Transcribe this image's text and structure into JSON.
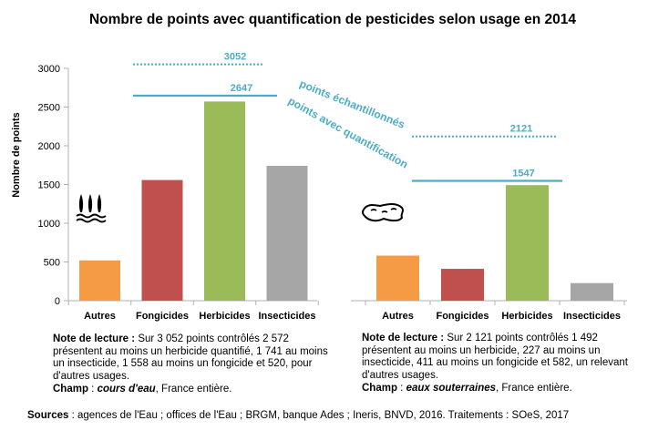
{
  "chart_data": {
    "type": "bar",
    "title": "Nombre de points avec quantification de pesticides selon usage en 2014",
    "ylabel": "Nombre de points",
    "ylim": [
      0,
      3000
    ],
    "yticks": [
      0,
      500,
      1000,
      1500,
      2000,
      2500,
      3000
    ],
    "categories": [
      "Autres",
      "Fongicides",
      "Herbicides",
      "Insecticides"
    ],
    "bar_colors": [
      "#f59a45",
      "#c0504d",
      "#9bbb59",
      "#a6a6a6"
    ],
    "line_color": "#4bacc6",
    "panels": [
      {
        "values": [
          520,
          1558,
          2572,
          1741
        ],
        "points_echantillonnes": 3052,
        "points_avec_quantification": 2647
      },
      {
        "values": [
          582,
          411,
          1492,
          227
        ],
        "points_echantillonnes": 2121,
        "points_avec_quantification": 1547
      }
    ],
    "annotations": {
      "echantillonnes": "points échantillonnés",
      "quantification": "points avec quantification"
    }
  },
  "notes": [
    {
      "label": "Note de lecture :",
      "text": "Sur 3 052 points contrôlés 2 572 présentent au moins un herbicide quantifié, 1 741 au moins un insecticide, 1 558 au moins un fongicide et 520, pour d'autres usages.",
      "champ_label": "Champ",
      "champ_sep": " : ",
      "champ_value": "cours d'eau",
      "champ_rest": ", France entière."
    },
    {
      "label": "Note de lecture :",
      "text": "Sur 2 121 points contrôlés 1 492 présentent au moins un herbicide, 227 au moins un insecticide, 411 au moins un fongicide et 582, un relevant  d'autres usages.",
      "champ_label": "Champ",
      "champ_sep": " : ",
      "champ_value": "eaux souterraines",
      "champ_rest": ",  France entière."
    }
  ],
  "sources": {
    "label": "Sources",
    "text": " : agences de l'Eau ; offices de l'Eau ; BRGM, banque Ades ; Ineris, BNVD, 2016. Traitements  : SOeS, 2017"
  },
  "icons": [
    "river-icon",
    "groundwater-icon"
  ]
}
